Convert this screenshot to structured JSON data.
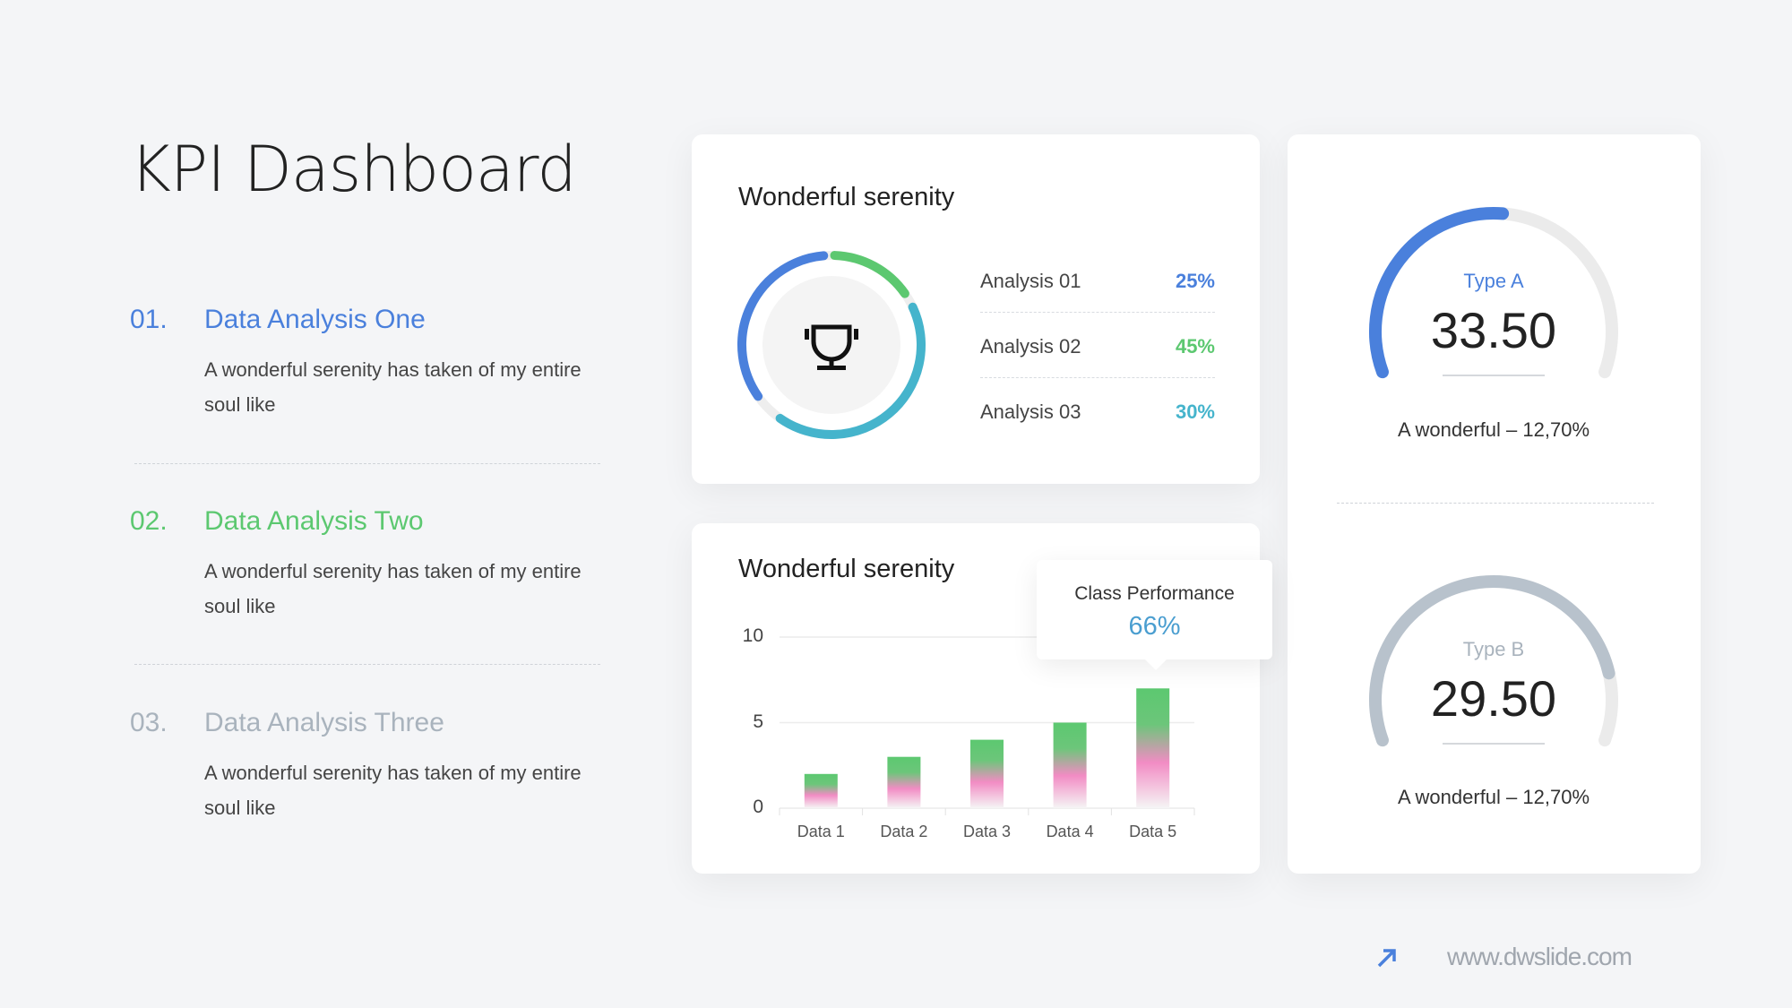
{
  "title": "KPI Dashboard",
  "sections": [
    {
      "num": "01.",
      "heading": "Data Analysis One",
      "desc": "A wonderful serenity has taken of my entire soul like",
      "color": "#4a80dc"
    },
    {
      "num": "02.",
      "heading": "Data Analysis Two",
      "desc": "A wonderful serenity has taken of my entire soul like",
      "color": "#5cc870"
    },
    {
      "num": "03.",
      "heading": "Data Analysis Three",
      "desc": "A wonderful serenity has taken of my entire soul like",
      "color": "#a9b3bd"
    }
  ],
  "donut_card": {
    "title": "Wonderful serenity",
    "icon": "trophy-icon",
    "items": [
      {
        "label": "Analysis 01",
        "value": "25%",
        "color": "#4a80dc"
      },
      {
        "label": "Analysis 02",
        "value": "45%",
        "color": "#5cc870"
      },
      {
        "label": "Analysis 03",
        "value": "30%",
        "color": "#45b4cc"
      }
    ]
  },
  "bar_card": {
    "title": "Wonderful serenity",
    "tooltip": {
      "label": "Class Performance",
      "value": "66%"
    }
  },
  "chart_data": {
    "type": "bar",
    "categories": [
      "Data 1",
      "Data 2",
      "Data 3",
      "Data 4",
      "Data 5"
    ],
    "values": [
      2,
      3,
      4,
      5,
      7
    ],
    "yticks": [
      "0",
      "5",
      "10"
    ],
    "ylim": [
      0,
      10
    ],
    "grid": true,
    "colors": {
      "top": "#5cc870",
      "middle": "#f28cc4",
      "bottom": "#f5f5f5"
    }
  },
  "gauges": [
    {
      "label": "Type A",
      "value": "33.50",
      "caption": "A wonderful – 12,70%",
      "fill": 0.52,
      "color": "#4a80dc",
      "label_color": "#4a80dc"
    },
    {
      "label": "Type B",
      "value": "29.50",
      "caption": "A wonderful – 12,70%",
      "fill": 0.85,
      "color": "#b8c2cc",
      "label_color": "#a9b3bd"
    }
  ],
  "footer": {
    "icon": "arrow-up-right-icon",
    "url": "www.dwslide.com",
    "accent": "#4a80dc"
  }
}
